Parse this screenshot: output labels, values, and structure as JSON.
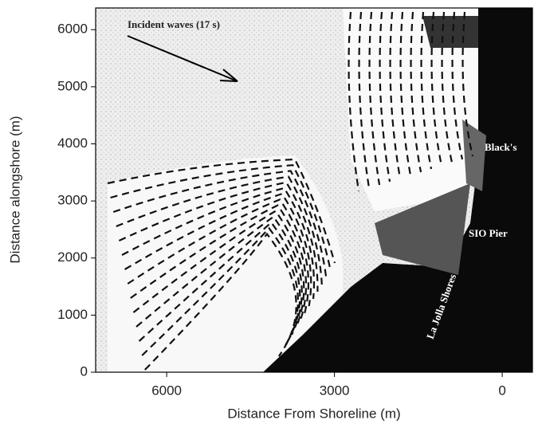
{
  "chart_data": {
    "type": "image",
    "x_label": "Distance From Shoreline (m)",
    "y_label": "Distance alongshore (m)",
    "xlim": [
      7270,
      -540
    ],
    "xticks": [
      6000,
      3000,
      0
    ],
    "ylim": [
      0,
      6380
    ],
    "yticks": [
      0,
      1000,
      2000,
      3000,
      4000,
      5000,
      6000
    ],
    "annotations": [
      "Incident waves (17 s)",
      "Black's",
      "SIO Pier",
      "La Jolla Shores"
    ]
  }
}
